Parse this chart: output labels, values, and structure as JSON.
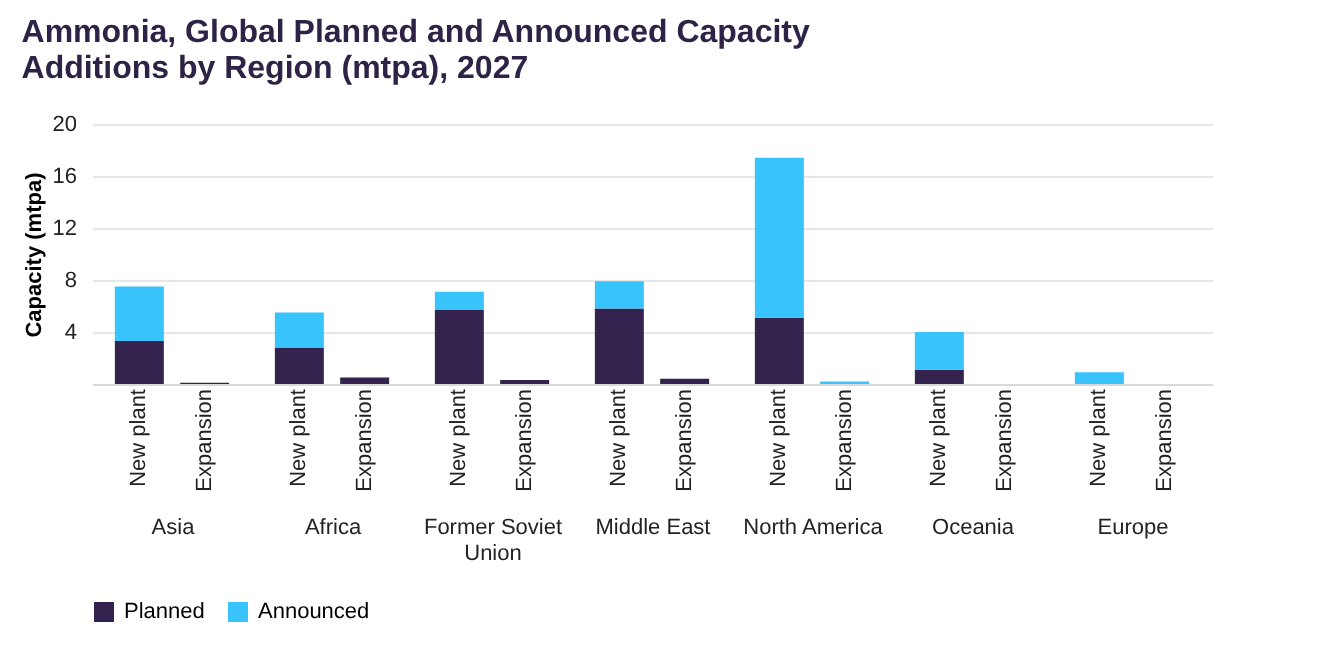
{
  "chart_data": [
    {
      "type": "bar",
      "title": "Ammonia, Global Planned and Announced Capacity Additions by Region (mtpa), 2027",
      "ylabel": "Capacity (mtpa)",
      "xlabel": "Asia",
      "categories": [
        "New plant",
        "Expansion"
      ],
      "stacked": true,
      "ylim": [
        0,
        20
      ],
      "yticks": [
        4,
        8,
        12,
        16,
        20
      ],
      "grid": "y",
      "legend": "bottom",
      "series": [
        {
          "name": "Planned",
          "color": "#35234f",
          "values": [
            3.3,
            0.1
          ]
        },
        {
          "name": "Announced",
          "color": "#38c3fb",
          "values": [
            4.2,
            0
          ]
        }
      ]
    },
    {
      "type": "bar",
      "xlabel": "Africa",
      "categories": [
        "New plant",
        "Expansion"
      ],
      "stacked": true,
      "ylim": [
        0,
        20
      ],
      "grid": "y",
      "legend": "bottom",
      "tick_labels": "x",
      "series": [
        {
          "name": "Planned",
          "color": "#35234f",
          "values": [
            2.8,
            0.5
          ]
        },
        {
          "name": "Announced",
          "color": "#38c3fb",
          "values": [
            2.7,
            0
          ]
        }
      ]
    },
    {
      "type": "bar",
      "xlabel": "Former Soviet Union",
      "categories": [
        "New plant",
        "Expansion"
      ],
      "stacked": true,
      "ylim": [
        0,
        20
      ],
      "grid": "y",
      "legend": "bottom",
      "tick_labels": "x",
      "series": [
        {
          "name": "Planned",
          "color": "#35234f",
          "values": [
            5.7,
            0.3
          ]
        },
        {
          "name": "Announced",
          "color": "#38c3fb",
          "values": [
            1.4,
            0
          ]
        }
      ]
    },
    {
      "type": "bar",
      "xlabel": "Middle East",
      "categories": [
        "New plant",
        "Expansion"
      ],
      "stacked": true,
      "ylim": [
        0,
        20
      ],
      "grid": "y",
      "legend": "bottom",
      "tick_labels": "x",
      "series": [
        {
          "name": "Planned",
          "color": "#35234f",
          "values": [
            5.8,
            0.4
          ]
        },
        {
          "name": "Announced",
          "color": "#38c3fb",
          "values": [
            2.1,
            0
          ]
        }
      ]
    },
    {
      "type": "bar",
      "xlabel": "North America",
      "categories": [
        "New plant",
        "Expansion"
      ],
      "stacked": true,
      "ylim": [
        0,
        20
      ],
      "grid": "y",
      "legend": "bottom",
      "tick_labels": "x",
      "series": [
        {
          "name": "Planned",
          "color": "#35234f",
          "values": [
            5.1,
            0
          ]
        },
        {
          "name": "Announced",
          "color": "#38c3fb",
          "values": [
            12.3,
            0.2
          ]
        }
      ]
    },
    {
      "type": "bar",
      "xlabel": "Oceania",
      "categories": [
        "New plant",
        "Expansion"
      ],
      "stacked": true,
      "ylim": [
        0,
        20
      ],
      "grid": "y",
      "legend": "bottom",
      "tick_labels": "x",
      "series": [
        {
          "name": "Planned",
          "color": "#35234f",
          "values": [
            1.1,
            0
          ]
        },
        {
          "name": "Announced",
          "color": "#38c3fb",
          "values": [
            2.9,
            0
          ]
        }
      ]
    },
    {
      "type": "bar",
      "xlabel": "Europe",
      "categories": [
        "New plant",
        "Expansion"
      ],
      "stacked": true,
      "ylim": [
        0,
        20
      ],
      "grid": "y",
      "legend": "bottom",
      "tick_labels": "x",
      "series": [
        {
          "name": "Planned",
          "color": "#35234f",
          "values": [
            0,
            0
          ]
        },
        {
          "name": "Announced",
          "color": "#38c3fb",
          "values": [
            0.9,
            0
          ]
        }
      ]
    }
  ]
}
